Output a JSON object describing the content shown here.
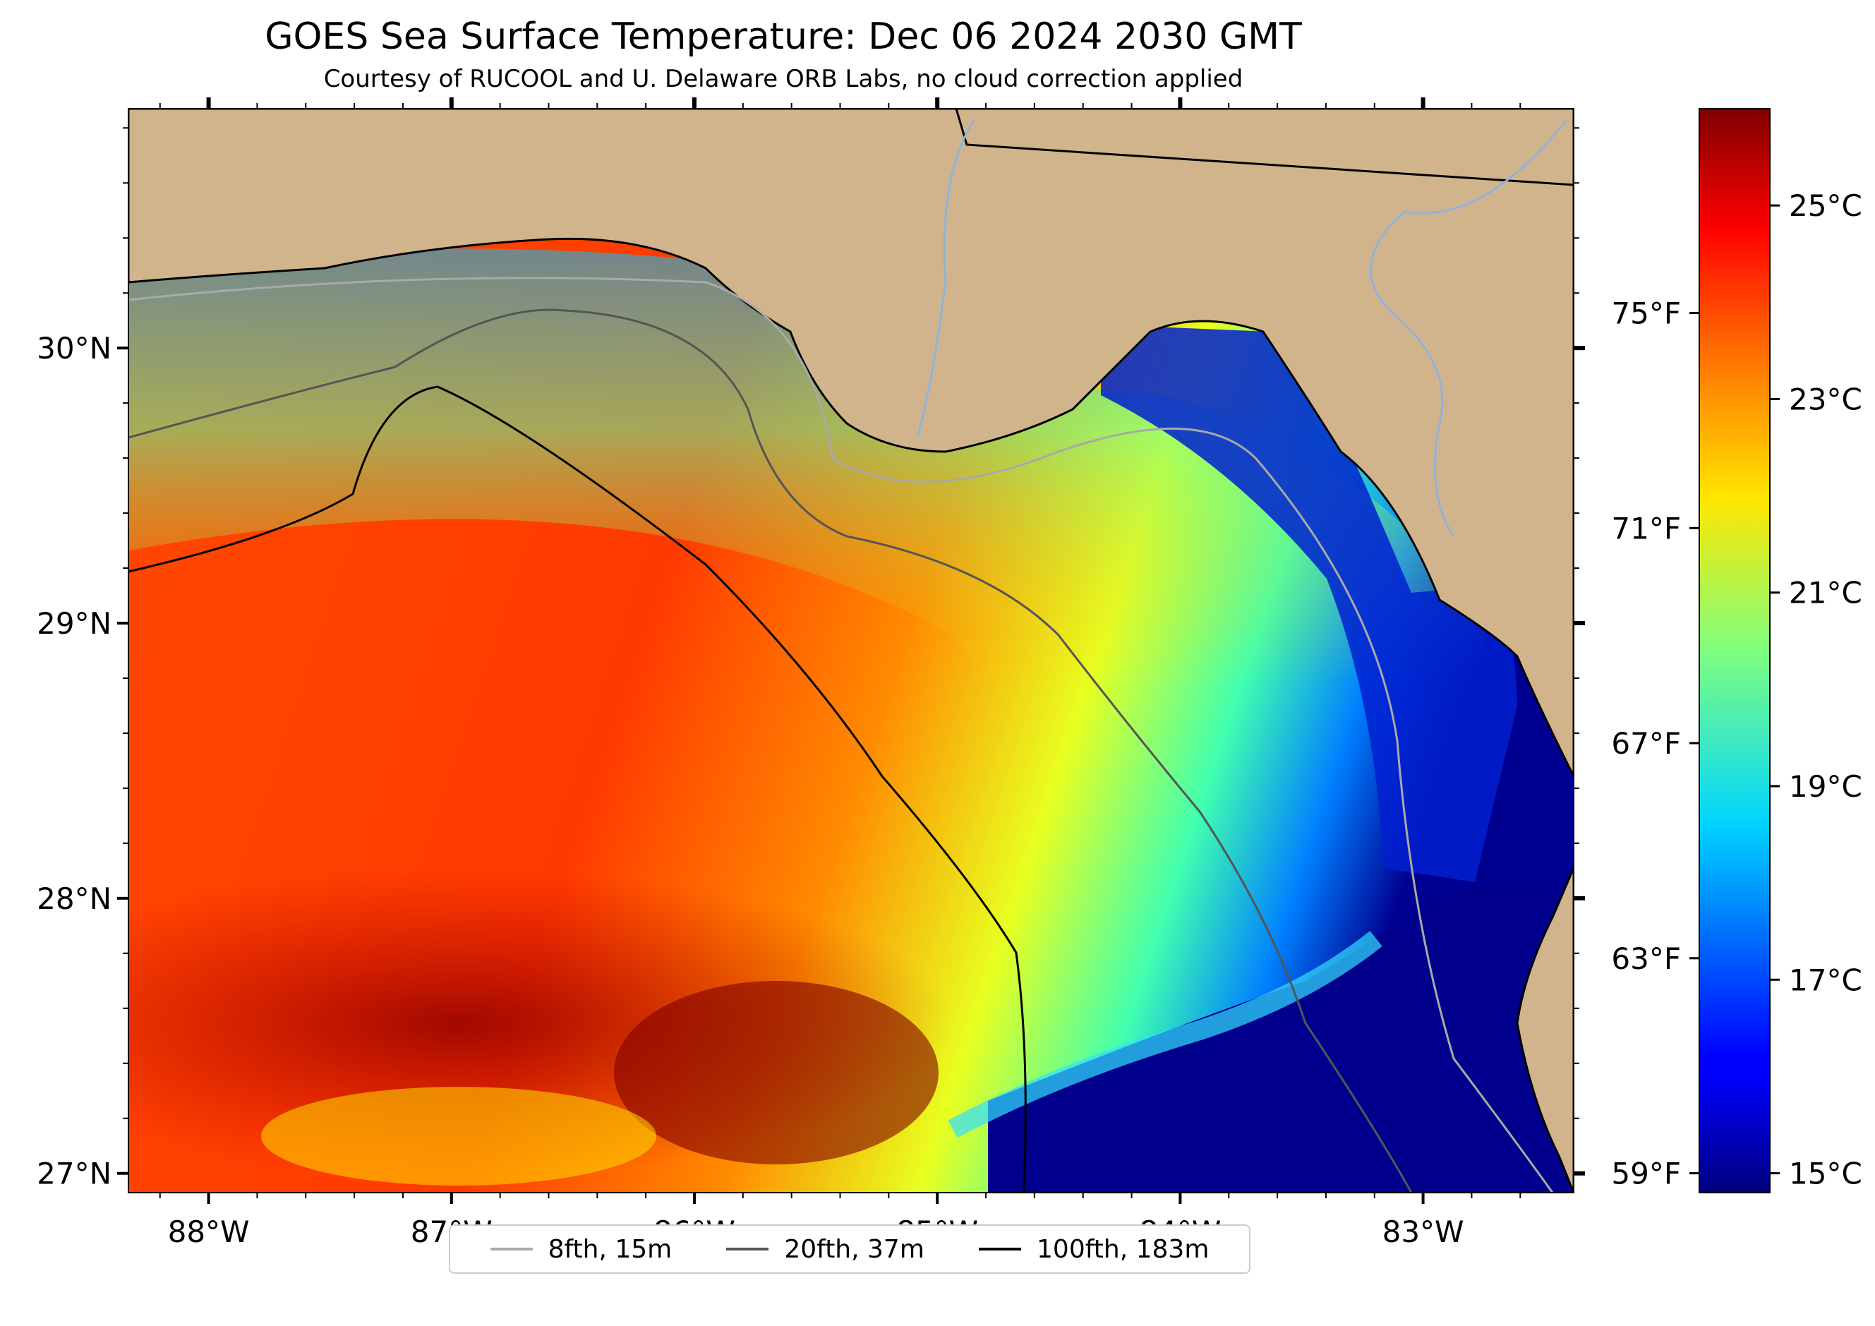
{
  "title": "GOES Sea Surface Temperature: Dec 06 2024 2030 GMT",
  "subtitle": "Courtesy of RUCOOL and U. Delaware ORB Labs, no cloud correction applied",
  "map": {
    "lon_range": [
      -88.33,
      -82.38
    ],
    "lat_range": [
      26.93,
      30.87
    ],
    "land_color": "#d2b48c",
    "ocean_colormap": "jet",
    "lon_ticks": [
      {
        "value": -88,
        "label": "88°W"
      },
      {
        "value": -87,
        "label": "87°W"
      },
      {
        "value": -86,
        "label": "86°W"
      },
      {
        "value": -85,
        "label": "85°W"
      },
      {
        "value": -84,
        "label": "84°W"
      },
      {
        "value": -83,
        "label": "83°W"
      }
    ],
    "lat_ticks": [
      {
        "value": 30,
        "label": "30°N"
      },
      {
        "value": 29,
        "label": "29°N"
      },
      {
        "value": 28,
        "label": "28°N"
      },
      {
        "value": 27,
        "label": "27°N"
      }
    ]
  },
  "colorbar": {
    "range_c": [
      14.8,
      26.0
    ],
    "celsius_ticks": [
      {
        "value": 25,
        "label": "25°C"
      },
      {
        "value": 23,
        "label": "23°C"
      },
      {
        "value": 21,
        "label": "21°C"
      },
      {
        "value": 19,
        "label": "19°C"
      },
      {
        "value": 17,
        "label": "17°C"
      },
      {
        "value": 15,
        "label": "15°C"
      }
    ],
    "fahrenheit_ticks": [
      {
        "value": 75,
        "label": "75°F"
      },
      {
        "value": 71,
        "label": "71°F"
      },
      {
        "value": 67,
        "label": "67°F"
      },
      {
        "value": 63,
        "label": "63°F"
      },
      {
        "value": 59,
        "label": "59°F"
      }
    ]
  },
  "legend": [
    {
      "label": "8fth, 15m",
      "color": "#a9a9a9"
    },
    {
      "label": "20fth, 37m",
      "color": "#555555"
    },
    {
      "label": "100fth, 183m",
      "color": "#000000"
    }
  ]
}
